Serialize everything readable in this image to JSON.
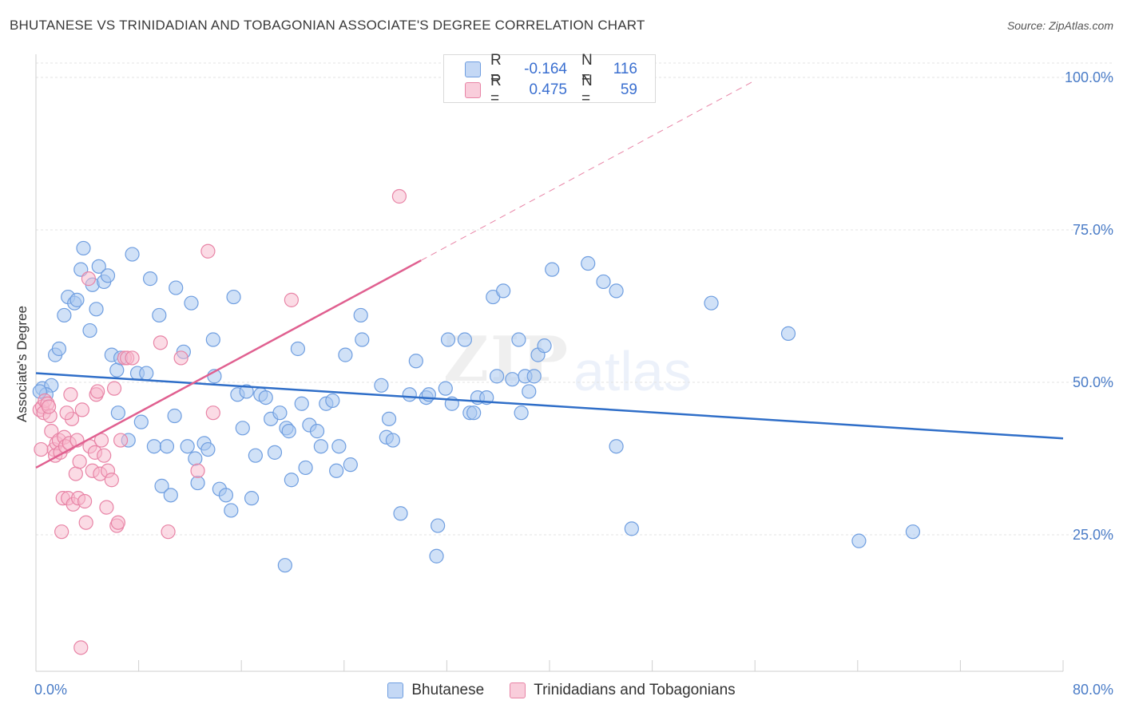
{
  "title": "BHUTANESE VS TRINIDADIAN AND TOBAGONIAN ASSOCIATE'S DEGREE CORRELATION CHART",
  "source": "Source: ZipAtlas.com",
  "watermark": {
    "zip": "ZIP",
    "atlas": "atlas"
  },
  "legend": {
    "rows": [
      {
        "r_label": "R =",
        "r_value": "-0.164",
        "n_label": "N =",
        "n_value": "116"
      },
      {
        "r_label": "R =",
        "r_value": "0.475",
        "n_label": "N =",
        "n_value": "59"
      }
    ]
  },
  "colors": {
    "blue_fill": "#aac8f0",
    "blue_stroke": "#6f9ee0",
    "blue_line": "#2f6ec8",
    "pink_fill": "#f7b7cb",
    "pink_stroke": "#e884a6",
    "pink_line": "#e06090",
    "grid": "#e3e3e3",
    "tick_text": "#4a7cc7"
  },
  "chart_data": {
    "type": "scatter",
    "title": "BHUTANESE VS TRINIDADIAN AND TOBAGONIAN ASSOCIATE'S DEGREE CORRELATION CHART",
    "xlabel": "",
    "ylabel": "Associate's Degree",
    "xlim": [
      0,
      80
    ],
    "ylim": [
      0,
      104
    ],
    "x_ticks": [
      "0.0%",
      "80.0%"
    ],
    "y_ticks": [
      {
        "value": 100,
        "label": "100.0%"
      },
      {
        "value": 75,
        "label": "75.0%"
      },
      {
        "value": 50,
        "label": "50.0%"
      },
      {
        "value": 25,
        "label": "25.0%"
      }
    ],
    "grid": true,
    "legend_position": "top-center",
    "series": [
      {
        "name": "Bhutanese",
        "color": "#aac8f0",
        "trend": {
          "x0": 0,
          "y0": 51.5,
          "x1": 80,
          "y1": 40.8
        },
        "points": [
          [
            0.5,
            49
          ],
          [
            1.2,
            49.5
          ],
          [
            0.8,
            48
          ],
          [
            1.5,
            54.5
          ],
          [
            1.8,
            55.5
          ],
          [
            2.2,
            61
          ],
          [
            2.5,
            64
          ],
          [
            3,
            63
          ],
          [
            3.2,
            63.5
          ],
          [
            3.5,
            68.5
          ],
          [
            3.7,
            72
          ],
          [
            4.2,
            58.5
          ],
          [
            4.4,
            66
          ],
          [
            4.7,
            62
          ],
          [
            4.9,
            69
          ],
          [
            5.3,
            66.5
          ],
          [
            5.6,
            67.5
          ],
          [
            5.9,
            54.5
          ],
          [
            6.3,
            52
          ],
          [
            6.6,
            54
          ],
          [
            6.4,
            45
          ],
          [
            7.2,
            40.5
          ],
          [
            7.5,
            71
          ],
          [
            7.9,
            51.5
          ],
          [
            8.2,
            43.5
          ],
          [
            8.6,
            51.5
          ],
          [
            8.9,
            67
          ],
          [
            9.2,
            39.5
          ],
          [
            9.6,
            61
          ],
          [
            9.8,
            33
          ],
          [
            10.2,
            39.5
          ],
          [
            10.5,
            31.5
          ],
          [
            10.8,
            44.5
          ],
          [
            10.9,
            65.5
          ],
          [
            11.5,
            55
          ],
          [
            11.8,
            39.5
          ],
          [
            12.1,
            63
          ],
          [
            12.4,
            37.5
          ],
          [
            12.6,
            33.5
          ],
          [
            13.1,
            40
          ],
          [
            13.4,
            39
          ],
          [
            13.8,
            57
          ],
          [
            13.9,
            51
          ],
          [
            14.3,
            32.5
          ],
          [
            14.8,
            31.5
          ],
          [
            15.2,
            29
          ],
          [
            15.4,
            64
          ],
          [
            15.7,
            48
          ],
          [
            16.1,
            42.5
          ],
          [
            16.4,
            48.5
          ],
          [
            16.8,
            31
          ],
          [
            17.1,
            38
          ],
          [
            17.5,
            48
          ],
          [
            17.9,
            47.5
          ],
          [
            18.3,
            44
          ],
          [
            18.6,
            38.5
          ],
          [
            19,
            45
          ],
          [
            19.4,
            20
          ],
          [
            19.5,
            42.5
          ],
          [
            19.7,
            42
          ],
          [
            19.9,
            34
          ],
          [
            20.4,
            55.5
          ],
          [
            20.7,
            46.5
          ],
          [
            21,
            36
          ],
          [
            21.3,
            43
          ],
          [
            21.9,
            42
          ],
          [
            22.2,
            39.5
          ],
          [
            22.6,
            46.5
          ],
          [
            23.1,
            47
          ],
          [
            23.4,
            35.5
          ],
          [
            23.6,
            39.5
          ],
          [
            24.1,
            54.5
          ],
          [
            24.5,
            36.5
          ],
          [
            25.3,
            61
          ],
          [
            25.4,
            57
          ],
          [
            26.9,
            49.5
          ],
          [
            27.3,
            41
          ],
          [
            27.5,
            44
          ],
          [
            27.8,
            40.5
          ],
          [
            28.4,
            28.5
          ],
          [
            29.1,
            48
          ],
          [
            29.6,
            53.5
          ],
          [
            30.4,
            47.5
          ],
          [
            30.6,
            48
          ],
          [
            31.3,
            26.5
          ],
          [
            31.2,
            21.5
          ],
          [
            31.9,
            49
          ],
          [
            32.1,
            57
          ],
          [
            32.4,
            46.5
          ],
          [
            33.4,
            57
          ],
          [
            33.8,
            45
          ],
          [
            34.1,
            45
          ],
          [
            34.4,
            47.5
          ],
          [
            35.1,
            47.5
          ],
          [
            35.6,
            64
          ],
          [
            35.9,
            51
          ],
          [
            36.4,
            65
          ],
          [
            37.1,
            50.5
          ],
          [
            37.6,
            57
          ],
          [
            37.8,
            45
          ],
          [
            38.1,
            51
          ],
          [
            38.4,
            48.5
          ],
          [
            38.8,
            51
          ],
          [
            39.1,
            54.5
          ],
          [
            39.6,
            56
          ],
          [
            40.2,
            68.5
          ],
          [
            43,
            69.5
          ],
          [
            44.2,
            66.5
          ],
          [
            45.2,
            65
          ],
          [
            45.2,
            39.5
          ],
          [
            46.4,
            26
          ],
          [
            52.6,
            63
          ],
          [
            58.6,
            58
          ],
          [
            64.1,
            24
          ],
          [
            68.3,
            25.5
          ],
          [
            0.3,
            48.5
          ]
        ]
      },
      {
        "name": "Trinidadians and Tobagonians",
        "color": "#f7b7cb",
        "trend": {
          "x0": 0,
          "y0": 36,
          "x1": 30,
          "y1": 70
        },
        "trend_ext": {
          "x0": 30,
          "y0": 70,
          "x1": 56,
          "y1": 99.5
        },
        "points": [
          [
            0.3,
            45.5
          ],
          [
            0.5,
            46
          ],
          [
            0.6,
            45
          ],
          [
            0.7,
            47
          ],
          [
            0.9,
            46.5
          ],
          [
            1.1,
            44.5
          ],
          [
            1.2,
            42
          ],
          [
            1.4,
            39
          ],
          [
            1.6,
            40
          ],
          [
            1.5,
            38
          ],
          [
            1.8,
            40.5
          ],
          [
            1.9,
            38.5
          ],
          [
            2,
            25.5
          ],
          [
            2.1,
            31
          ],
          [
            2.2,
            41
          ],
          [
            2.3,
            39.5
          ],
          [
            2.5,
            31
          ],
          [
            2.6,
            40
          ],
          [
            2.7,
            48
          ],
          [
            2.8,
            44
          ],
          [
            2.9,
            30
          ],
          [
            3.1,
            35
          ],
          [
            3.2,
            40.5
          ],
          [
            3.3,
            31
          ],
          [
            3.4,
            37
          ],
          [
            3.5,
            6.5
          ],
          [
            3.6,
            45.5
          ],
          [
            3.8,
            30.5
          ],
          [
            3.9,
            27
          ],
          [
            4.1,
            67
          ],
          [
            4.2,
            39.5
          ],
          [
            4.4,
            35.5
          ],
          [
            4.6,
            38.5
          ],
          [
            4.7,
            48
          ],
          [
            4.8,
            48.5
          ],
          [
            5,
            35
          ],
          [
            5.1,
            40.5
          ],
          [
            5.3,
            38
          ],
          [
            5.5,
            29.5
          ],
          [
            5.6,
            35.5
          ],
          [
            5.9,
            34
          ],
          [
            6.1,
            49
          ],
          [
            6.3,
            26.5
          ],
          [
            6.4,
            27
          ],
          [
            6.6,
            40.5
          ],
          [
            6.9,
            54
          ],
          [
            7.1,
            54
          ],
          [
            7.5,
            54
          ],
          [
            9.7,
            56.5
          ],
          [
            10.3,
            25.5
          ],
          [
            11.3,
            54
          ],
          [
            12.6,
            35.5
          ],
          [
            13.4,
            71.5
          ],
          [
            13.8,
            45
          ],
          [
            19.9,
            63.5
          ],
          [
            28.3,
            80.5
          ],
          [
            0.4,
            39
          ],
          [
            1,
            46
          ],
          [
            2.4,
            45
          ]
        ]
      }
    ]
  },
  "bottom_legend": [
    {
      "label": "Bhutanese"
    },
    {
      "label": "Trinidadians and Tobagonians"
    }
  ]
}
